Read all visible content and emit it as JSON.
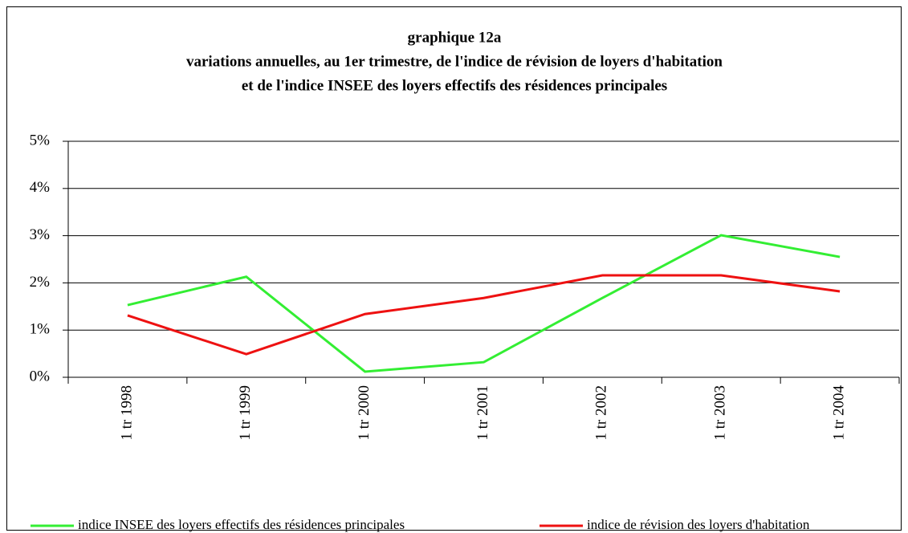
{
  "chart_data": {
    "type": "line",
    "title": [
      "graphique 12a",
      "variations annuelles, au 1er trimestre, de l'indice de révision de loyers d'habitation",
      "et de l'indice INSEE des loyers effectifs des résidences principales"
    ],
    "categories": [
      "1 tr 1998",
      "1 tr 1999",
      "1 tr 2000",
      "1 tr 2001",
      "1 tr 2002",
      "1 tr 2003",
      "1 tr 2004"
    ],
    "series": [
      {
        "name": "indice INSEE des loyers effectifs des résidences principales",
        "color": "#33ee33",
        "values": [
          1.53,
          2.13,
          0.12,
          0.32,
          1.68,
          3.01,
          2.55
        ]
      },
      {
        "name": "indice de révision des loyers d'habitation",
        "color": "#ee1111",
        "values": [
          1.31,
          0.49,
          1.34,
          1.68,
          2.16,
          2.16,
          1.82
        ]
      }
    ],
    "ylim": [
      0,
      5
    ],
    "yticks": [
      {
        "value": 0,
        "label": "0%"
      },
      {
        "value": 1,
        "label": "1%"
      },
      {
        "value": 2,
        "label": "2%"
      },
      {
        "value": 3,
        "label": "3%"
      },
      {
        "value": 4,
        "label": "4%"
      },
      {
        "value": 5,
        "label": "5%"
      }
    ],
    "grid": true
  }
}
